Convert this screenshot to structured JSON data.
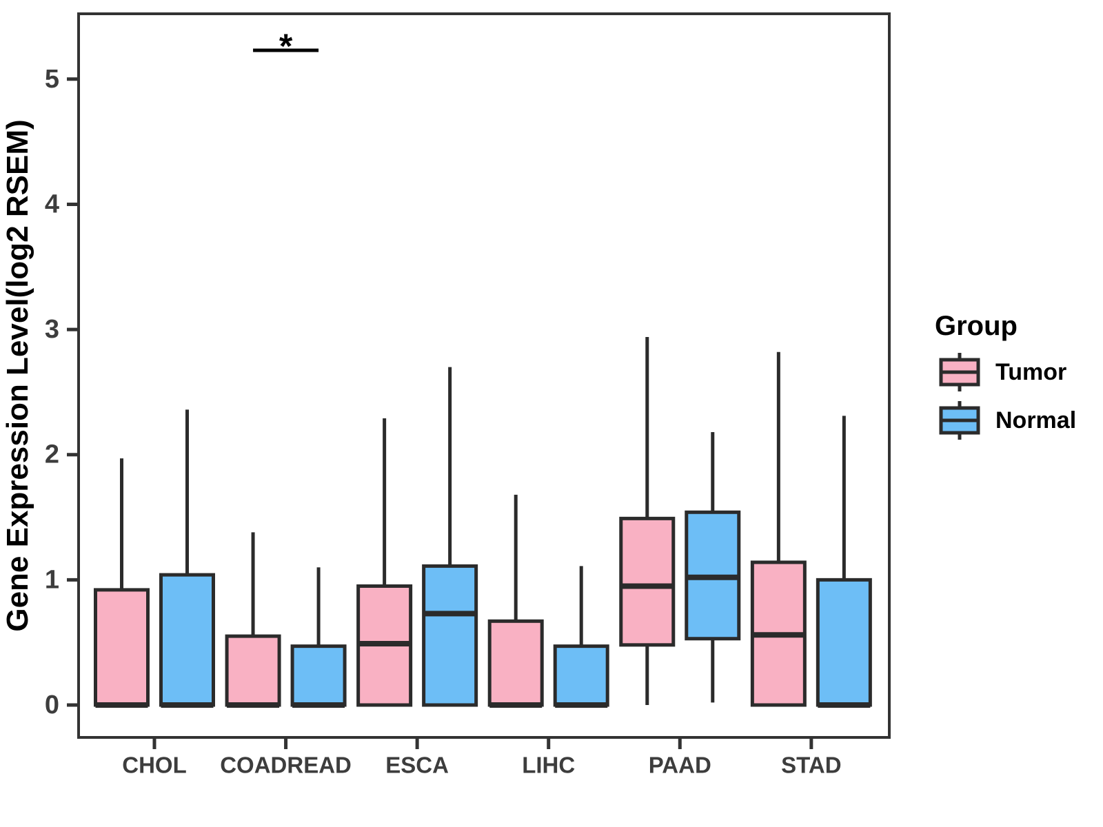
{
  "chart_data": {
    "type": "grouped_boxplot",
    "title": "",
    "xlabel": "",
    "ylabel": "Gene Expression Level(log2 RSEM)",
    "categories": [
      "CHOL",
      "COADREAD",
      "ESCA",
      "LIHC",
      "PAAD",
      "STAD"
    ],
    "yticks": [
      0,
      1,
      2,
      3,
      4,
      5
    ],
    "ylim": [
      -0.3,
      5.5
    ],
    "grid": false,
    "legend": {
      "title": "Group",
      "position": "right",
      "entries": [
        {
          "label": "Tumor",
          "color": "#F9B1C3"
        },
        {
          "label": "Normal",
          "color": "#6DBEF6"
        }
      ]
    },
    "series": [
      {
        "name": "Tumor",
        "color": "#F9B1C3",
        "stats": [
          {
            "category": "CHOL",
            "whisker_low": 0,
            "q1": 0,
            "median": 0,
            "q3": 0.92,
            "whisker_high": 1.97
          },
          {
            "category": "COADREAD",
            "whisker_low": 0,
            "q1": 0,
            "median": 0,
            "q3": 0.55,
            "whisker_high": 1.38
          },
          {
            "category": "ESCA",
            "whisker_low": 0,
            "q1": 0,
            "median": 0.49,
            "q3": 0.95,
            "whisker_high": 2.29
          },
          {
            "category": "LIHC",
            "whisker_low": 0,
            "q1": 0,
            "median": 0,
            "q3": 0.67,
            "whisker_high": 1.68
          },
          {
            "category": "PAAD",
            "whisker_low": 0,
            "q1": 0.48,
            "median": 0.95,
            "q3": 1.49,
            "whisker_high": 2.94
          },
          {
            "category": "STAD",
            "whisker_low": 0,
            "q1": 0,
            "median": 0.56,
            "q3": 1.14,
            "whisker_high": 2.82
          }
        ]
      },
      {
        "name": "Normal",
        "color": "#6DBEF6",
        "stats": [
          {
            "category": "CHOL",
            "whisker_low": 0,
            "q1": 0,
            "median": 0,
            "q3": 1.04,
            "whisker_high": 2.36
          },
          {
            "category": "COADREAD",
            "whisker_low": 0,
            "q1": 0,
            "median": 0,
            "q3": 0.47,
            "whisker_high": 1.1
          },
          {
            "category": "ESCA",
            "whisker_low": 0,
            "q1": 0,
            "median": 0.73,
            "q3": 1.11,
            "whisker_high": 2.7
          },
          {
            "category": "LIHC",
            "whisker_low": 0,
            "q1": 0,
            "median": 0,
            "q3": 0.47,
            "whisker_high": 1.11
          },
          {
            "category": "PAAD",
            "whisker_low": 0.02,
            "q1": 0.53,
            "median": 1.02,
            "q3": 1.54,
            "whisker_high": 2.18
          },
          {
            "category": "STAD",
            "whisker_low": 0,
            "q1": 0,
            "median": 0,
            "q3": 1.0,
            "whisker_high": 2.31
          }
        ]
      }
    ],
    "annotations": [
      {
        "type": "significance",
        "category": "COADREAD",
        "label": "*"
      }
    ],
    "style": {
      "box_stroke": "#2B2B2B",
      "axis_color": "#333333",
      "tick_label_color": "#3D3D3D",
      "text_color": "#000000",
      "background": "#FFFFFF"
    }
  }
}
